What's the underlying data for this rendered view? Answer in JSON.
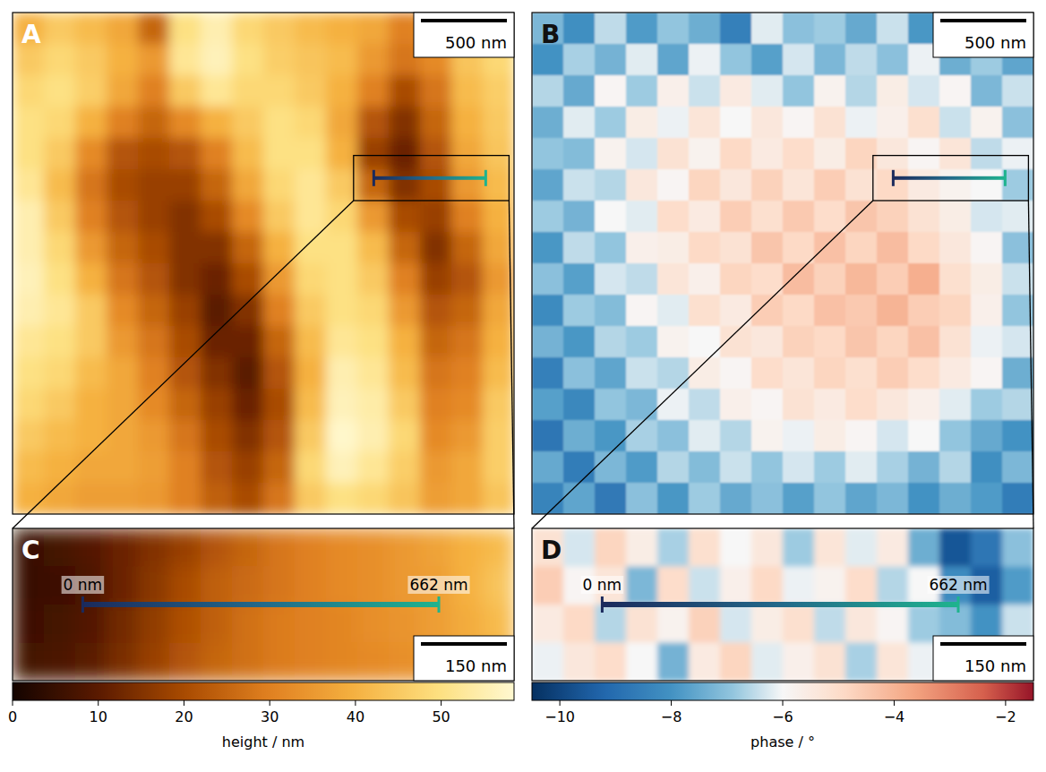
{
  "chart_data": [
    {
      "type": "heatmap",
      "overview": {
        "label": "A",
        "scale_bar": "500 nm",
        "cells": [
          [
            40,
            45,
            42,
            38,
            25,
            50,
            55,
            48,
            45,
            42,
            40,
            38,
            30,
            35,
            45,
            48
          ],
          [
            45,
            48,
            45,
            40,
            35,
            52,
            56,
            50,
            46,
            44,
            42,
            35,
            28,
            32,
            44,
            48
          ],
          [
            48,
            50,
            46,
            38,
            30,
            45,
            52,
            48,
            48,
            45,
            40,
            30,
            20,
            28,
            42,
            46
          ],
          [
            50,
            48,
            40,
            30,
            25,
            32,
            40,
            45,
            50,
            48,
            38,
            22,
            15,
            25,
            40,
            45
          ],
          [
            50,
            45,
            32,
            22,
            20,
            22,
            30,
            42,
            50,
            50,
            40,
            18,
            12,
            22,
            38,
            44
          ],
          [
            52,
            42,
            28,
            20,
            18,
            18,
            25,
            38,
            48,
            52,
            45,
            25,
            15,
            20,
            35,
            42
          ],
          [
            55,
            45,
            30,
            22,
            18,
            15,
            20,
            32,
            45,
            52,
            48,
            35,
            20,
            18,
            30,
            40
          ],
          [
            55,
            48,
            35,
            25,
            20,
            15,
            15,
            25,
            40,
            50,
            50,
            42,
            25,
            15,
            25,
            38
          ],
          [
            56,
            50,
            40,
            28,
            22,
            15,
            12,
            20,
            35,
            48,
            50,
            45,
            30,
            18,
            22,
            35
          ],
          [
            55,
            52,
            45,
            32,
            25,
            18,
            10,
            15,
            30,
            45,
            50,
            48,
            35,
            22,
            25,
            38
          ],
          [
            52,
            50,
            45,
            35,
            28,
            20,
            12,
            12,
            25,
            42,
            52,
            50,
            40,
            25,
            28,
            40
          ],
          [
            50,
            48,
            42,
            38,
            30,
            22,
            15,
            10,
            22,
            40,
            55,
            52,
            42,
            28,
            30,
            42
          ],
          [
            48,
            45,
            40,
            38,
            32,
            25,
            18,
            12,
            20,
            42,
            56,
            54,
            45,
            30,
            32,
            45
          ],
          [
            45,
            42,
            40,
            38,
            35,
            28,
            20,
            15,
            22,
            45,
            58,
            55,
            48,
            32,
            35,
            46
          ],
          [
            42,
            40,
            38,
            38,
            36,
            30,
            22,
            18,
            25,
            48,
            56,
            52,
            46,
            35,
            38,
            46
          ],
          [
            40,
            38,
            36,
            36,
            35,
            30,
            24,
            20,
            28,
            45,
            50,
            48,
            44,
            36,
            38,
            44
          ]
        ]
      },
      "zoom": {
        "label": "C",
        "scale_bar": "150 nm",
        "cells": [
          [
            5,
            7,
            9,
            12,
            15,
            18,
            22,
            25,
            28,
            30,
            32,
            33,
            35,
            37,
            40,
            42
          ],
          [
            5,
            6,
            8,
            12,
            16,
            20,
            24,
            26,
            28,
            30,
            32,
            33,
            35,
            36,
            40,
            44
          ],
          [
            6,
            7,
            9,
            13,
            17,
            21,
            24,
            27,
            29,
            30,
            31,
            33,
            34,
            36,
            39,
            42
          ],
          [
            7,
            8,
            10,
            14,
            18,
            22,
            25,
            27,
            29,
            30,
            31,
            32,
            33,
            35,
            38,
            40
          ]
        ]
      },
      "profile": {
        "start": "0 nm",
        "end": "662 nm"
      },
      "colorbar": {
        "label": "height / nm",
        "range": [
          0,
          58.5
        ],
        "ticks": [
          0,
          10,
          20,
          30,
          40,
          50
        ]
      }
    },
    {
      "type": "heatmap",
      "overview": {
        "label": "B",
        "scale_bar": "500 nm",
        "cells": [
          [
            -7.2,
            -8.1,
            -6.5,
            -7.8,
            -6.9,
            -7.4,
            -8.5,
            -6.2,
            -7.0,
            -6.8,
            -7.5,
            -6.4,
            -7.9,
            -6.6,
            -7.1,
            -6.9
          ],
          [
            -8.0,
            -6.7,
            -7.3,
            -6.2,
            -7.6,
            -6.1,
            -6.9,
            -7.7,
            -6.3,
            -7.2,
            -6.5,
            -7.0,
            -6.1,
            -7.4,
            -6.8,
            -7.6
          ],
          [
            -6.6,
            -7.5,
            -5.9,
            -6.8,
            -5.7,
            -6.4,
            -5.5,
            -6.2,
            -6.9,
            -5.8,
            -6.6,
            -5.6,
            -6.3,
            -5.9,
            -7.2,
            -6.4
          ],
          [
            -7.4,
            -6.2,
            -6.8,
            -5.6,
            -6.1,
            -5.3,
            -6.0,
            -5.4,
            -5.9,
            -5.2,
            -6.1,
            -5.7,
            -5.1,
            -6.4,
            -5.8,
            -7.0
          ],
          [
            -6.9,
            -7.1,
            -5.8,
            -6.3,
            -5.2,
            -5.8,
            -4.9,
            -5.5,
            -5.0,
            -5.6,
            -4.8,
            -5.4,
            -5.9,
            -5.3,
            -6.5,
            -6.1
          ],
          [
            -7.6,
            -6.4,
            -6.6,
            -5.4,
            -5.9,
            -4.8,
            -5.4,
            -4.7,
            -5.3,
            -4.6,
            -5.2,
            -4.9,
            -5.5,
            -5.8,
            -6.0,
            -6.8
          ],
          [
            -6.8,
            -7.3,
            -6.0,
            -6.2,
            -5.0,
            -5.5,
            -4.6,
            -5.1,
            -4.5,
            -5.0,
            -4.4,
            -4.7,
            -5.2,
            -5.6,
            -6.3,
            -6.2
          ],
          [
            -7.9,
            -6.5,
            -6.9,
            -5.7,
            -5.6,
            -4.9,
            -5.2,
            -4.4,
            -4.9,
            -4.3,
            -4.8,
            -4.2,
            -4.9,
            -5.4,
            -5.9,
            -7.0
          ],
          [
            -7.0,
            -7.7,
            -6.3,
            -6.5,
            -5.3,
            -5.7,
            -4.8,
            -5.0,
            -4.2,
            -4.7,
            -4.1,
            -4.6,
            -3.9,
            -5.1,
            -5.6,
            -6.4
          ],
          [
            -8.2,
            -6.8,
            -7.1,
            -5.9,
            -6.2,
            -5.1,
            -5.5,
            -4.6,
            -4.9,
            -4.3,
            -4.5,
            -4.0,
            -4.6,
            -4.8,
            -5.7,
            -6.9
          ],
          [
            -7.3,
            -7.9,
            -6.6,
            -6.8,
            -5.8,
            -6.0,
            -5.2,
            -5.4,
            -4.7,
            -4.9,
            -4.4,
            -4.8,
            -4.3,
            -5.2,
            -6.1,
            -6.3
          ],
          [
            -8.5,
            -7.0,
            -7.6,
            -6.4,
            -6.6,
            -5.6,
            -5.9,
            -5.0,
            -5.3,
            -4.8,
            -5.1,
            -4.6,
            -5.0,
            -5.5,
            -5.9,
            -7.4
          ],
          [
            -7.7,
            -8.3,
            -6.9,
            -7.2,
            -6.1,
            -6.5,
            -5.7,
            -5.9,
            -5.2,
            -5.5,
            -5.0,
            -5.4,
            -5.7,
            -6.2,
            -6.8,
            -6.6
          ],
          [
            -8.8,
            -7.4,
            -7.9,
            -6.7,
            -7.0,
            -6.2,
            -6.6,
            -5.8,
            -6.1,
            -5.6,
            -5.9,
            -6.3,
            -6.0,
            -6.9,
            -7.5,
            -8.0
          ],
          [
            -7.5,
            -8.6,
            -7.2,
            -7.8,
            -6.6,
            -7.1,
            -6.4,
            -6.9,
            -6.3,
            -6.8,
            -6.2,
            -6.7,
            -7.3,
            -6.6,
            -8.1,
            -7.2
          ],
          [
            -8.4,
            -7.6,
            -8.7,
            -7.0,
            -7.9,
            -6.8,
            -7.5,
            -7.0,
            -7.7,
            -6.9,
            -7.6,
            -7.2,
            -8.0,
            -7.4,
            -7.8,
            -8.6
          ]
        ]
      },
      "zoom": {
        "label": "D",
        "scale_bar": "150 nm",
        "cells": [
          [
            -5.2,
            -6.3,
            -4.8,
            -5.6,
            -6.7,
            -5.1,
            -6.0,
            -5.4,
            -6.8,
            -5.3,
            -6.2,
            -5.5,
            -7.4,
            -9.6,
            -8.8,
            -7.0
          ],
          [
            -4.6,
            -5.9,
            -5.3,
            -7.2,
            -5.0,
            -6.4,
            -5.7,
            -4.9,
            -6.1,
            -5.8,
            -5.0,
            -6.6,
            -6.0,
            -8.2,
            -9.4,
            -7.8
          ],
          [
            -5.5,
            -4.9,
            -6.6,
            -5.2,
            -5.8,
            -4.7,
            -6.3,
            -5.6,
            -5.1,
            -6.5,
            -5.4,
            -5.9,
            -6.8,
            -7.1,
            -8.0,
            -6.4
          ],
          [
            -6.1,
            -5.4,
            -5.0,
            -6.0,
            -7.3,
            -5.5,
            -4.8,
            -6.2,
            -5.7,
            -5.2,
            -6.7,
            -5.3,
            -6.1,
            -6.6,
            -7.2,
            -6.0
          ]
        ]
      },
      "profile": {
        "start": "0 nm",
        "end": "662 nm"
      },
      "colorbar": {
        "label": "phase / °",
        "range": [
          -10.5,
          -1.5
        ],
        "ticks": [
          {
            "value": -10,
            "label": "−10"
          },
          {
            "value": -8,
            "label": "−8"
          },
          {
            "value": -6,
            "label": "−6"
          },
          {
            "value": -4,
            "label": "−4"
          },
          {
            "value": -2,
            "label": "−2"
          }
        ]
      }
    }
  ]
}
